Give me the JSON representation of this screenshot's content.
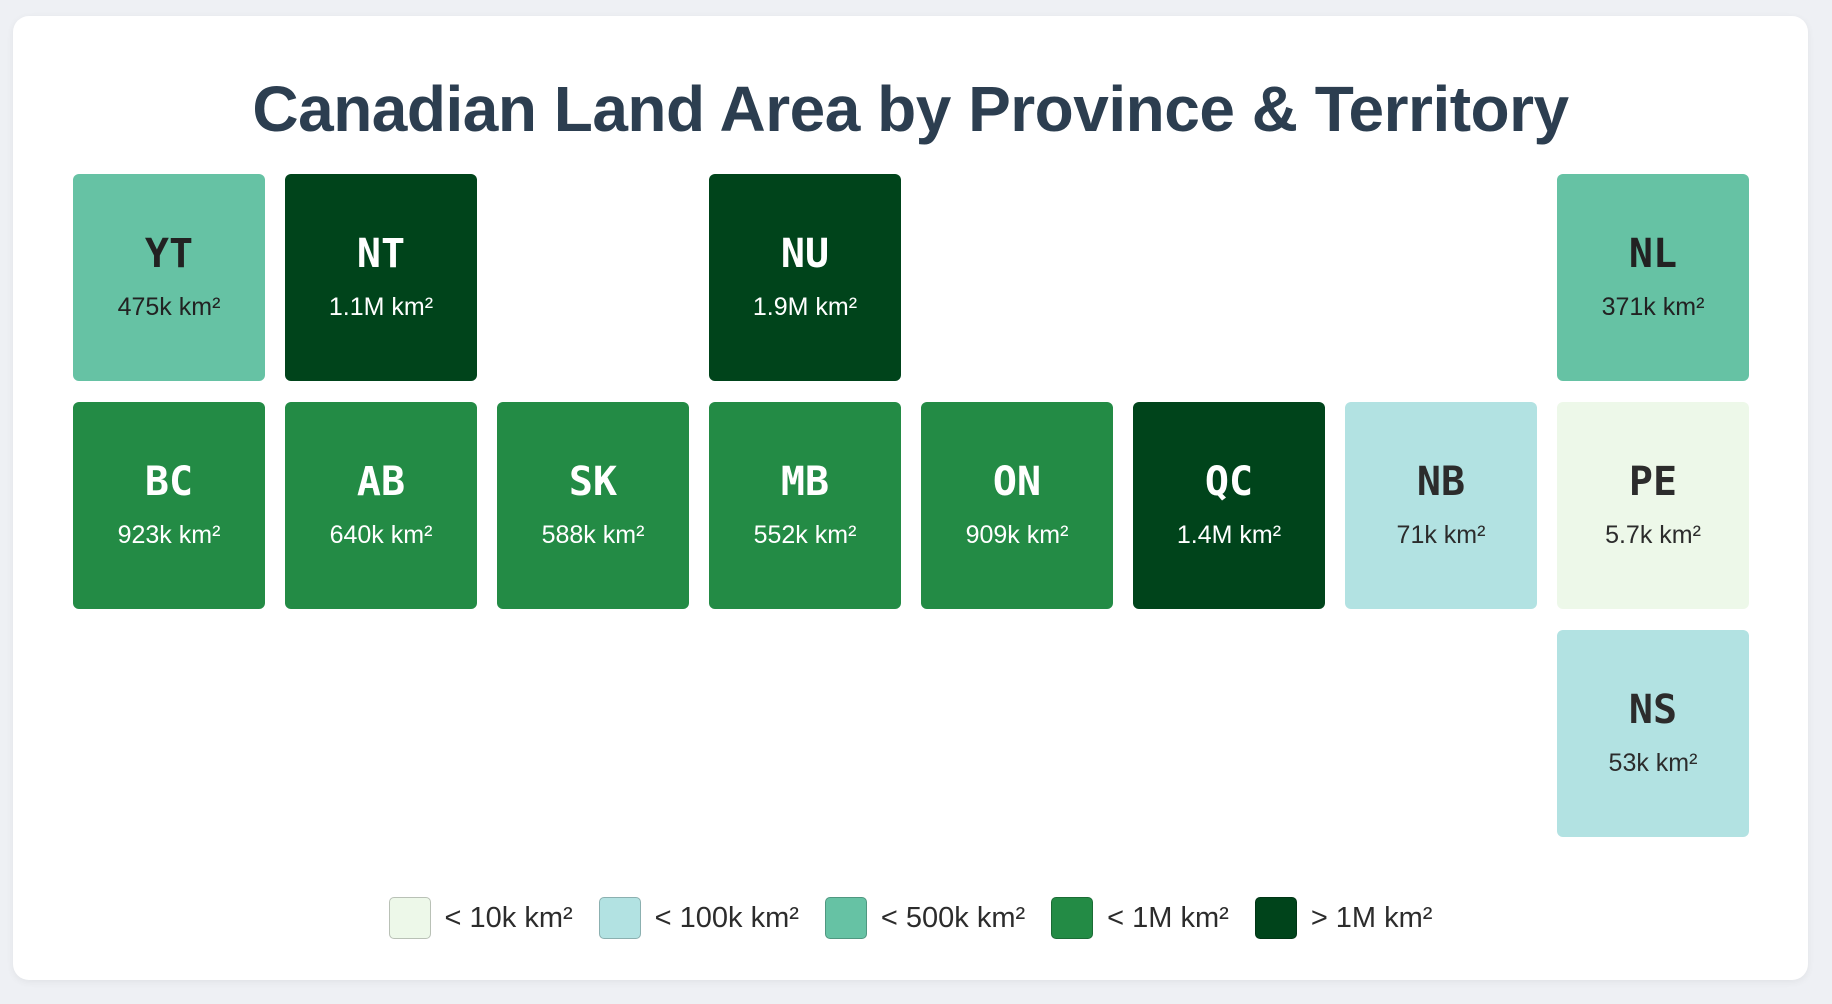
{
  "chart_data": {
    "type": "tile-map",
    "title": "Canadian Land Area by Province & Territory",
    "unit": "km²",
    "tiles": [
      {
        "code": "YT",
        "label": "475k km²",
        "value": 475000,
        "bin": 2,
        "row": 0,
        "col": 0
      },
      {
        "code": "NT",
        "label": "1.1M km²",
        "value": 1100000,
        "bin": 4,
        "row": 0,
        "col": 1
      },
      {
        "code": "NU",
        "label": "1.9M km²",
        "value": 1900000,
        "bin": 4,
        "row": 0,
        "col": 3
      },
      {
        "code": "NL",
        "label": "371k km²",
        "value": 371000,
        "bin": 2,
        "row": 0,
        "col": 7
      },
      {
        "code": "BC",
        "label": "923k km²",
        "value": 923000,
        "bin": 3,
        "row": 1,
        "col": 0
      },
      {
        "code": "AB",
        "label": "640k km²",
        "value": 640000,
        "bin": 3,
        "row": 1,
        "col": 1
      },
      {
        "code": "SK",
        "label": "588k km²",
        "value": 588000,
        "bin": 3,
        "row": 1,
        "col": 2
      },
      {
        "code": "MB",
        "label": "552k km²",
        "value": 552000,
        "bin": 3,
        "row": 1,
        "col": 3
      },
      {
        "code": "ON",
        "label": "909k km²",
        "value": 909000,
        "bin": 3,
        "row": 1,
        "col": 4
      },
      {
        "code": "QC",
        "label": "1.4M km²",
        "value": 1400000,
        "bin": 4,
        "row": 1,
        "col": 5
      },
      {
        "code": "NB",
        "label": "71k km²",
        "value": 71000,
        "bin": 1,
        "row": 1,
        "col": 6
      },
      {
        "code": "PE",
        "label": "5.7k km²",
        "value": 5700,
        "bin": 0,
        "row": 1,
        "col": 7
      },
      {
        "code": "NS",
        "label": "53k km²",
        "value": 53000,
        "bin": 1,
        "row": 2,
        "col": 7
      }
    ],
    "legend": [
      {
        "label": "< 10k km²",
        "color": "#edf8e9",
        "text_color": "#2c2c2c"
      },
      {
        "label": "< 100k km²",
        "color": "#b2e2e2",
        "text_color": "#2c2c2c"
      },
      {
        "label": "< 500k km²",
        "color": "#66c2a4",
        "text_color": "#222222"
      },
      {
        "label": "< 1M km²",
        "color": "#238b45",
        "text_color": "#ffffff"
      },
      {
        "label": "> 1M km²",
        "color": "#00441b",
        "text_color": "#ffffff"
      }
    ],
    "legend_position": "bottom-center"
  }
}
